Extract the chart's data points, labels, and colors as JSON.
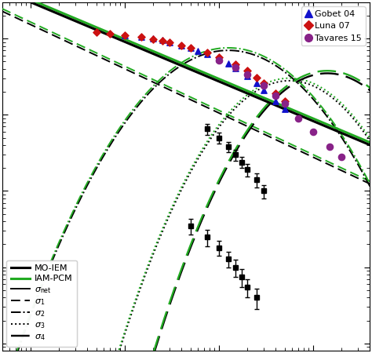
{
  "gobet04_color": "#1111cc",
  "luna07_color": "#cc1111",
  "tavares15_color": "#882288",
  "exp_square_color": "#000000",
  "background": "#ffffff",
  "xlim": [
    0.5,
    4000
  ],
  "ylim": [
    0.008,
    300
  ],
  "figsize": [
    4.74,
    4.5
  ],
  "dpi": 100,
  "gobet_E": [
    10,
    15,
    20,
    25,
    30,
    40,
    50,
    60,
    75,
    100,
    125,
    150,
    200,
    250,
    300,
    400,
    500
  ],
  "gobet_s": [
    110,
    105,
    100,
    95,
    90,
    82,
    75,
    69,
    62,
    54,
    47,
    41,
    32,
    26,
    21,
    15,
    12
  ],
  "luna_E": [
    5,
    7,
    10,
    15,
    20,
    25,
    30,
    40,
    50,
    75,
    100,
    150,
    200,
    250,
    300,
    400,
    500
  ],
  "luna_s": [
    120,
    115,
    110,
    104,
    99,
    94,
    90,
    82,
    76,
    65,
    57,
    46,
    38,
    31,
    26,
    19,
    15
  ],
  "tavares_E": [
    100,
    150,
    200,
    300,
    400,
    500,
    700,
    1000,
    1500,
    2000
  ],
  "tavares_s": [
    52,
    42,
    34,
    24,
    18,
    14,
    9,
    6,
    3.8,
    2.8
  ],
  "sq1_E": [
    75,
    100,
    125,
    150,
    175,
    200,
    250,
    300
  ],
  "sq1_s": [
    6.5,
    5.0,
    3.8,
    3.0,
    2.4,
    1.9,
    1.4,
    1.0
  ],
  "sq1_yerr": [
    1.0,
    0.8,
    0.6,
    0.5,
    0.4,
    0.35,
    0.3,
    0.2
  ],
  "sq2_E": [
    50,
    75,
    100,
    125,
    150,
    175,
    200,
    250
  ],
  "sq2_s": [
    0.35,
    0.25,
    0.18,
    0.13,
    0.1,
    0.075,
    0.055,
    0.04
  ],
  "sq2_yerr": [
    0.08,
    0.06,
    0.04,
    0.03,
    0.025,
    0.02,
    0.015,
    0.012
  ],
  "lw_thick": 2.2,
  "lw_thin": 1.4
}
